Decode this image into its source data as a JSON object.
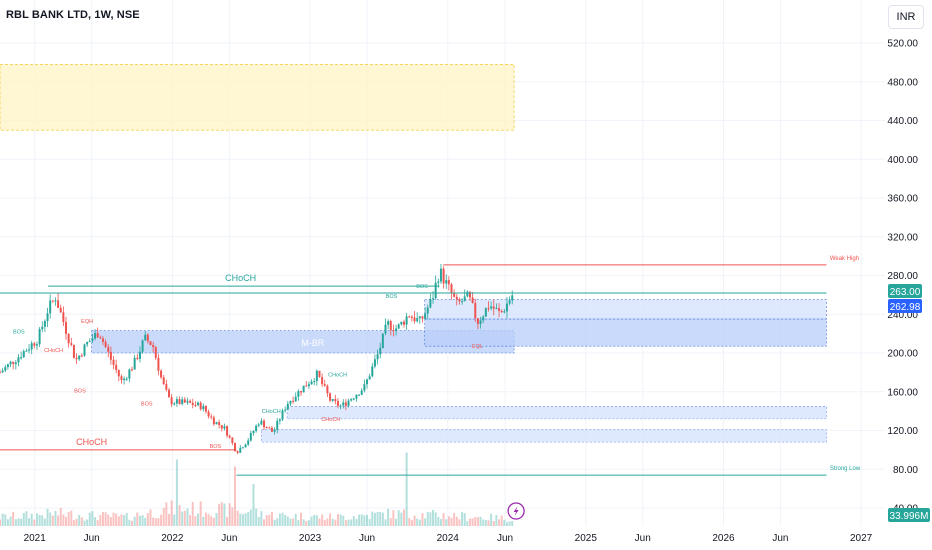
{
  "header": {
    "symbol_title": "RBL BANK LTD, 1W, NSE",
    "currency": "INR"
  },
  "colors": {
    "up": "#26a69a",
    "down": "#ef5350",
    "zone_blue": "#b8cdfa",
    "zone_yellow": "#fff3c4",
    "price_tag": "#26a69a",
    "tag_blue": "#2962ff"
  },
  "chart_data": {
    "type": "candlestick",
    "title": "RBL BANK LTD, 1W, NSE",
    "ylim": [
      30,
      545
    ],
    "y_ticks": [
      "520.00",
      "480.00",
      "440.00",
      "400.00",
      "360.00",
      "320.00",
      "280.00",
      "240.00",
      "200.00",
      "160.00",
      "120.00",
      "80.00",
      "40.00"
    ],
    "x_range": [
      "2020-10-01",
      "2027-02-20"
    ],
    "x_ticks": [
      {
        "date": "2021-01-01",
        "label": "2021"
      },
      {
        "date": "2021-06-01",
        "label": "Jun"
      },
      {
        "date": "2022-01-01",
        "label": "2022"
      },
      {
        "date": "2022-06-01",
        "label": "Jun"
      },
      {
        "date": "2023-01-01",
        "label": "2023"
      },
      {
        "date": "2023-06-01",
        "label": "Jun"
      },
      {
        "date": "2024-01-01",
        "label": "2024"
      },
      {
        "date": "2024-06-01",
        "label": "Jun"
      },
      {
        "date": "2025-01-01",
        "label": "2025"
      },
      {
        "date": "2025-06-01",
        "label": "Jun"
      },
      {
        "date": "2026-01-01",
        "label": "2026"
      },
      {
        "date": "2026-06-01",
        "label": "Jun"
      },
      {
        "date": "2027-01-01",
        "label": "2027"
      }
    ],
    "price_anchors": [
      [
        "2020-10-01",
        180
      ],
      [
        "2020-11-15",
        195
      ],
      [
        "2021-01-10",
        215
      ],
      [
        "2021-02-05",
        245
      ],
      [
        "2021-02-25",
        258
      ],
      [
        "2021-03-20",
        230
      ],
      [
        "2021-04-20",
        192
      ],
      [
        "2021-05-20",
        210
      ],
      [
        "2021-06-20",
        222
      ],
      [
        "2021-07-20",
        195
      ],
      [
        "2021-08-20",
        170
      ],
      [
        "2021-09-20",
        188
      ],
      [
        "2021-10-20",
        215
      ],
      [
        "2021-11-10",
        208
      ],
      [
        "2021-12-05",
        170
      ],
      [
        "2021-12-25",
        150
      ],
      [
        "2022-02-15",
        148
      ],
      [
        "2022-03-20",
        145
      ],
      [
        "2022-04-20",
        130
      ],
      [
        "2022-05-20",
        122
      ],
      [
        "2022-06-20",
        98
      ],
      [
        "2022-07-20",
        110
      ],
      [
        "2022-08-20",
        130
      ],
      [
        "2022-09-25",
        118
      ],
      [
        "2022-11-01",
        148
      ],
      [
        "2022-12-15",
        165
      ],
      [
        "2023-01-20",
        178
      ],
      [
        "2023-02-25",
        150
      ],
      [
        "2023-03-25",
        145
      ],
      [
        "2023-04-25",
        155
      ],
      [
        "2023-05-25",
        165
      ],
      [
        "2023-07-01",
        200
      ],
      [
        "2023-07-25",
        230
      ],
      [
        "2023-08-20",
        225
      ],
      [
        "2023-09-20",
        240
      ],
      [
        "2023-10-20",
        232
      ],
      [
        "2023-11-20",
        255
      ],
      [
        "2023-12-10",
        285
      ],
      [
        "2023-12-30",
        270
      ],
      [
        "2024-01-25",
        250
      ],
      [
        "2024-02-25",
        258
      ],
      [
        "2024-03-20",
        232
      ],
      [
        "2024-04-20",
        250
      ],
      [
        "2024-05-20",
        240
      ],
      [
        "2024-06-25",
        263
      ]
    ],
    "volume_anchors": [
      [
        "2020-10-01",
        0.25
      ],
      [
        "2021-03-01",
        0.35
      ],
      [
        "2021-09-01",
        0.25
      ],
      [
        "2022-01-01",
        0.5
      ],
      [
        "2022-06-01",
        0.45
      ],
      [
        "2022-10-01",
        0.3
      ],
      [
        "2023-03-01",
        0.25
      ],
      [
        "2023-08-01",
        0.35
      ],
      [
        "2024-01-01",
        0.3
      ],
      [
        "2024-06-25",
        0.2
      ]
    ],
    "volume_spikes": [
      [
        "2022-01-15",
        1.9
      ],
      [
        "2022-06-15",
        1.7
      ],
      [
        "2022-08-01",
        1.2
      ],
      [
        "2023-09-15",
        2.1
      ]
    ],
    "last_price": "263.00",
    "last_price_secondary": "262.98",
    "last_volume": "33.996M",
    "horizontal_lines": [
      {
        "name": "choch-top",
        "price": 269,
        "from": "2021-02-05",
        "to": "2023-12-10",
        "color": "#26a69a",
        "label": "CHoCH",
        "label_date": "2022-07-01"
      },
      {
        "name": "previous-high-level",
        "price": 262,
        "from": "2020-10-01",
        "to": "2026-10-01",
        "color": "#26a69a",
        "label": ""
      },
      {
        "name": "weak-high",
        "price": 291,
        "from": "2023-12-20",
        "to": "2026-10-01",
        "color": "#ef5350",
        "label": "Weak High",
        "label_date": "2026-10-10"
      },
      {
        "name": "strong-low",
        "price": 74,
        "from": "2022-06-20",
        "to": "2026-10-01",
        "color": "#26a69a",
        "label": "Strong Low",
        "label_date": "2026-10-10"
      },
      {
        "name": "choch-bottom",
        "price": 100,
        "from": "2020-10-01",
        "to": "2022-06-20",
        "color": "#ef5350",
        "label": "CHoCH",
        "label_date": "2021-06-01"
      }
    ],
    "zones": [
      {
        "name": "supply-zone",
        "top": 498,
        "bottom": 430,
        "from": "2020-10-01",
        "to": "2024-06-25",
        "color": "#fff3c4",
        "stroke": "#f0c419",
        "label": ""
      },
      {
        "name": "mid-zone",
        "top": 223,
        "bottom": 200,
        "from": "2021-06-01",
        "to": "2024-06-25",
        "color": "#b8cdfa",
        "stroke": "#3f6fe0",
        "label": "M-BR"
      },
      {
        "name": "demand-zone-1",
        "top": 255,
        "bottom": 235,
        "from": "2023-11-01",
        "to": "2026-10-01",
        "color": "#d4e1fc",
        "stroke": "#3f6fe0",
        "label": ""
      },
      {
        "name": "demand-zone-2",
        "top": 235,
        "bottom": 207,
        "from": "2023-11-01",
        "to": "2026-10-01",
        "color": "#b8cdfa",
        "stroke": "#3f6fe0",
        "label": ""
      },
      {
        "name": "demand-zone-3",
        "top": 145,
        "bottom": 132,
        "from": "2022-11-01",
        "to": "2026-10-01",
        "color": "#d4e1fc",
        "stroke": "#6e8fe8",
        "label": ""
      },
      {
        "name": "demand-zone-4",
        "top": 121,
        "bottom": 108,
        "from": "2022-08-25",
        "to": "2026-10-01",
        "color": "#d4e1fc",
        "stroke": "#6e8fe8",
        "label": ""
      }
    ],
    "annotations": [
      {
        "text": "BOS",
        "date": "2020-11-20",
        "price": 220,
        "color": "#26a69a"
      },
      {
        "text": "EQH",
        "date": "2021-05-20",
        "price": 231,
        "color": "#ef5350"
      },
      {
        "text": "CHoCH",
        "date": "2021-02-20",
        "price": 201,
        "color": "#ef5350"
      },
      {
        "text": "BOS",
        "date": "2021-05-01",
        "price": 159,
        "color": "#ef5350"
      },
      {
        "text": "BOS",
        "date": "2021-10-25",
        "price": 146,
        "color": "#ef5350"
      },
      {
        "text": "BOS",
        "date": "2022-04-25",
        "price": 102,
        "color": "#ef5350"
      },
      {
        "text": "CHoCH",
        "date": "2022-09-20",
        "price": 138,
        "color": "#26a69a"
      },
      {
        "text": "CHoCH",
        "date": "2023-03-15",
        "price": 176,
        "color": "#26a69a"
      },
      {
        "text": "CHoCH",
        "date": "2023-02-25",
        "price": 130,
        "color": "#ef5350"
      },
      {
        "text": "BOS",
        "date": "2023-08-05",
        "price": 257,
        "color": "#26a69a"
      },
      {
        "text": "BOS",
        "date": "2023-10-25",
        "price": 267,
        "color": "#26a69a"
      },
      {
        "text": "EQL",
        "date": "2024-03-20",
        "price": 205,
        "color": "#ef5350"
      }
    ]
  }
}
